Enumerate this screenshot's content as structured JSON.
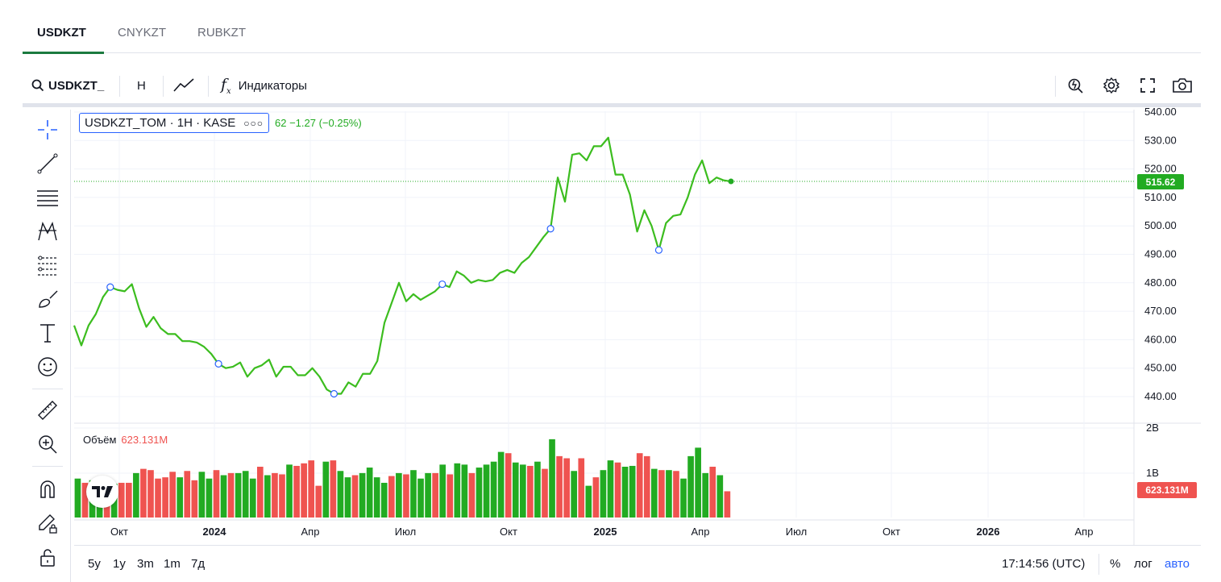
{
  "tabs": [
    {
      "label": "USDKZT",
      "active": true
    },
    {
      "label": "CNYKZT",
      "active": false
    },
    {
      "label": "RUBKZT",
      "active": false
    }
  ],
  "toolbar": {
    "symbol": "USDKZT_",
    "interval": "H",
    "indicators": "Индикаторы"
  },
  "legend": {
    "symbol": "USDKZT_TOM · 1H · KASE",
    "change": "62  −1.27 (−0.25%)"
  },
  "volume": {
    "label": "Объём",
    "value": "623.131M"
  },
  "price_tag": "515.62",
  "volume_tag": "623.131M",
  "bottom": {
    "ranges": [
      "5y",
      "1y",
      "3m",
      "1m",
      "7д"
    ],
    "time": "17:14:56 (UTC)",
    "percent": "%",
    "log": "лог",
    "auto": "авто"
  },
  "colors": {
    "up": "#22ab22",
    "down": "#ef5350",
    "line": "#3cbd1f",
    "accent": "#2962ff"
  },
  "chart_data": {
    "type": "line",
    "symbol": "USDKZT_TOM",
    "price_axis": {
      "ticks": [
        "540.00",
        "530.00",
        "520.00",
        "510.00",
        "500.00",
        "490.00",
        "480.00",
        "470.00",
        "460.00",
        "450.00",
        "440.00"
      ],
      "ylim": [
        436,
        541
      ]
    },
    "volume_axis": {
      "ticks": [
        "2B",
        "1B"
      ]
    },
    "time_axis": [
      "Окт",
      "2024",
      "Апр",
      "Июл",
      "Окт",
      "2025",
      "Апр",
      "Июл",
      "Окт",
      "2026",
      "Апр"
    ],
    "last_price": 515.62,
    "price_series": [
      465.0,
      458.0,
      465.0,
      469.0,
      475.0,
      478.5,
      477.5,
      477.0,
      479.5,
      471.0,
      464.5,
      468.0,
      464.0,
      462.0,
      462.0,
      459.5,
      459.5,
      459.0,
      457.5,
      455.0,
      451.5,
      450.0,
      450.5,
      452.0,
      447.0,
      450.0,
      451.0,
      453.0,
      447.0,
      450.5,
      450.5,
      447.5,
      447.5,
      450.0,
      447.0,
      442.5,
      441.0,
      441.0,
      445.0,
      443.5,
      448.0,
      448.0,
      452.5,
      466.0,
      473.0,
      480.0,
      473.5,
      476.0,
      474.0,
      475.5,
      477.0,
      479.5,
      478.5,
      484.0,
      482.5,
      480.0,
      481.0,
      480.5,
      481.0,
      483.5,
      484.5,
      483.5,
      487.0,
      489.0,
      492.5,
      496.0,
      499.0,
      517.0,
      508.5,
      525.0,
      525.5,
      523.0,
      528.0,
      528.0,
      531.0,
      518.0,
      518.0,
      511.0,
      498.0,
      505.5,
      500.0,
      491.5,
      501.0,
      503.5,
      504.0,
      510.0,
      518.0,
      523.0,
      515.0,
      517.0,
      516.0,
      515.62
    ],
    "markers": [
      5,
      20,
      36,
      51,
      66,
      81
    ],
    "volume_series": [
      {
        "v": 0.92,
        "up": true
      },
      {
        "v": 0.82,
        "up": false
      },
      {
        "v": 0.88,
        "up": true
      },
      {
        "v": 0.95,
        "up": true
      },
      {
        "v": 0.88,
        "up": false
      },
      {
        "v": 0.8,
        "up": true
      },
      {
        "v": 0.82,
        "up": false
      },
      {
        "v": 0.82,
        "up": false
      },
      {
        "v": 1.05,
        "up": true
      },
      {
        "v": 1.15,
        "up": false
      },
      {
        "v": 1.12,
        "up": false
      },
      {
        "v": 0.92,
        "up": false
      },
      {
        "v": 0.95,
        "up": false
      },
      {
        "v": 1.08,
        "up": false
      },
      {
        "v": 0.95,
        "up": true
      },
      {
        "v": 1.1,
        "up": false
      },
      {
        "v": 0.88,
        "up": false
      },
      {
        "v": 1.08,
        "up": true
      },
      {
        "v": 0.92,
        "up": true
      },
      {
        "v": 1.12,
        "up": false
      },
      {
        "v": 1.0,
        "up": true
      },
      {
        "v": 1.05,
        "up": false
      },
      {
        "v": 1.05,
        "up": true
      },
      {
        "v": 1.1,
        "up": true
      },
      {
        "v": 0.92,
        "up": true
      },
      {
        "v": 1.2,
        "up": false
      },
      {
        "v": 1.0,
        "up": true
      },
      {
        "v": 1.05,
        "up": false
      },
      {
        "v": 1.02,
        "up": false
      },
      {
        "v": 1.25,
        "up": true
      },
      {
        "v": 1.22,
        "up": false
      },
      {
        "v": 1.28,
        "up": false
      },
      {
        "v": 1.35,
        "up": false
      },
      {
        "v": 0.75,
        "up": false
      },
      {
        "v": 1.32,
        "up": true
      },
      {
        "v": 1.35,
        "up": false
      },
      {
        "v": 1.1,
        "up": true
      },
      {
        "v": 0.95,
        "up": true
      },
      {
        "v": 1.0,
        "up": false
      },
      {
        "v": 1.05,
        "up": true
      },
      {
        "v": 1.18,
        "up": true
      },
      {
        "v": 0.95,
        "up": true
      },
      {
        "v": 0.82,
        "up": true
      },
      {
        "v": 0.98,
        "up": false
      },
      {
        "v": 1.05,
        "up": true
      },
      {
        "v": 1.02,
        "up": false
      },
      {
        "v": 1.12,
        "up": true
      },
      {
        "v": 0.92,
        "up": true
      },
      {
        "v": 1.05,
        "up": true
      },
      {
        "v": 1.05,
        "up": false
      },
      {
        "v": 1.25,
        "up": true
      },
      {
        "v": 1.02,
        "up": false
      },
      {
        "v": 1.28,
        "up": true
      },
      {
        "v": 1.25,
        "up": true
      },
      {
        "v": 1.05,
        "up": false
      },
      {
        "v": 1.18,
        "up": true
      },
      {
        "v": 1.25,
        "up": true
      },
      {
        "v": 1.32,
        "up": true
      },
      {
        "v": 1.55,
        "up": true
      },
      {
        "v": 1.52,
        "up": false
      },
      {
        "v": 1.3,
        "up": true
      },
      {
        "v": 1.25,
        "up": true
      },
      {
        "v": 1.22,
        "up": false
      },
      {
        "v": 1.32,
        "up": true
      },
      {
        "v": 1.15,
        "up": false
      },
      {
        "v": 1.85,
        "up": true
      },
      {
        "v": 1.45,
        "up": false
      },
      {
        "v": 1.4,
        "up": false
      },
      {
        "v": 1.1,
        "up": true
      },
      {
        "v": 1.4,
        "up": false
      },
      {
        "v": 0.75,
        "up": true
      },
      {
        "v": 0.95,
        "up": false
      },
      {
        "v": 1.12,
        "up": true
      },
      {
        "v": 1.35,
        "up": true
      },
      {
        "v": 1.3,
        "up": false
      },
      {
        "v": 1.2,
        "up": true
      },
      {
        "v": 1.22,
        "up": true
      },
      {
        "v": 1.52,
        "up": false
      },
      {
        "v": 1.45,
        "up": false
      },
      {
        "v": 1.15,
        "up": true
      },
      {
        "v": 1.12,
        "up": false
      },
      {
        "v": 1.12,
        "up": true
      },
      {
        "v": 1.1,
        "up": false
      },
      {
        "v": 0.92,
        "up": true
      },
      {
        "v": 1.45,
        "up": true
      },
      {
        "v": 1.65,
        "up": true
      },
      {
        "v": 1.05,
        "up": true
      },
      {
        "v": 1.2,
        "up": false
      },
      {
        "v": 1.0,
        "up": true
      },
      {
        "v": 0.62,
        "up": false
      }
    ]
  }
}
